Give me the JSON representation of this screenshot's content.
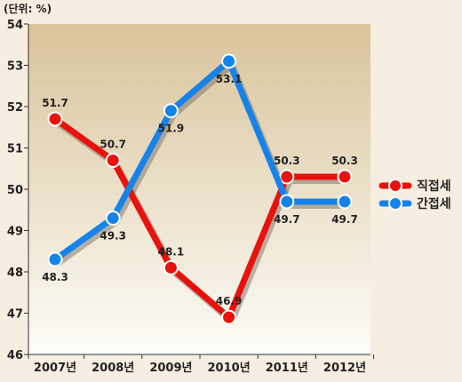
{
  "chart_data": {
    "type": "line",
    "unit_label": "(단위: %)",
    "categories": [
      "2007년",
      "2008년",
      "2009년",
      "2010년",
      "2011년",
      "2012년"
    ],
    "ylim": [
      46,
      54
    ],
    "y_ticks": [
      46,
      47,
      48,
      49,
      50,
      51,
      52,
      53,
      54
    ],
    "grid": false,
    "legend_position": "right",
    "series": [
      {
        "name": "직접세",
        "color": "#e8120c",
        "values": [
          51.7,
          50.7,
          48.1,
          46.9,
          50.3,
          50.3
        ],
        "labels": [
          "51.7",
          "50.7",
          "48.1",
          "46.9",
          "50.3",
          "50.3"
        ],
        "label_pos": "above"
      },
      {
        "name": "간접세",
        "color": "#1683ea",
        "values": [
          48.3,
          49.3,
          51.9,
          53.1,
          49.7,
          49.7
        ],
        "labels": [
          "48.3",
          "49.3",
          "51.9",
          "53.1",
          "49.7",
          "49.7"
        ],
        "label_pos": "below"
      }
    ]
  }
}
